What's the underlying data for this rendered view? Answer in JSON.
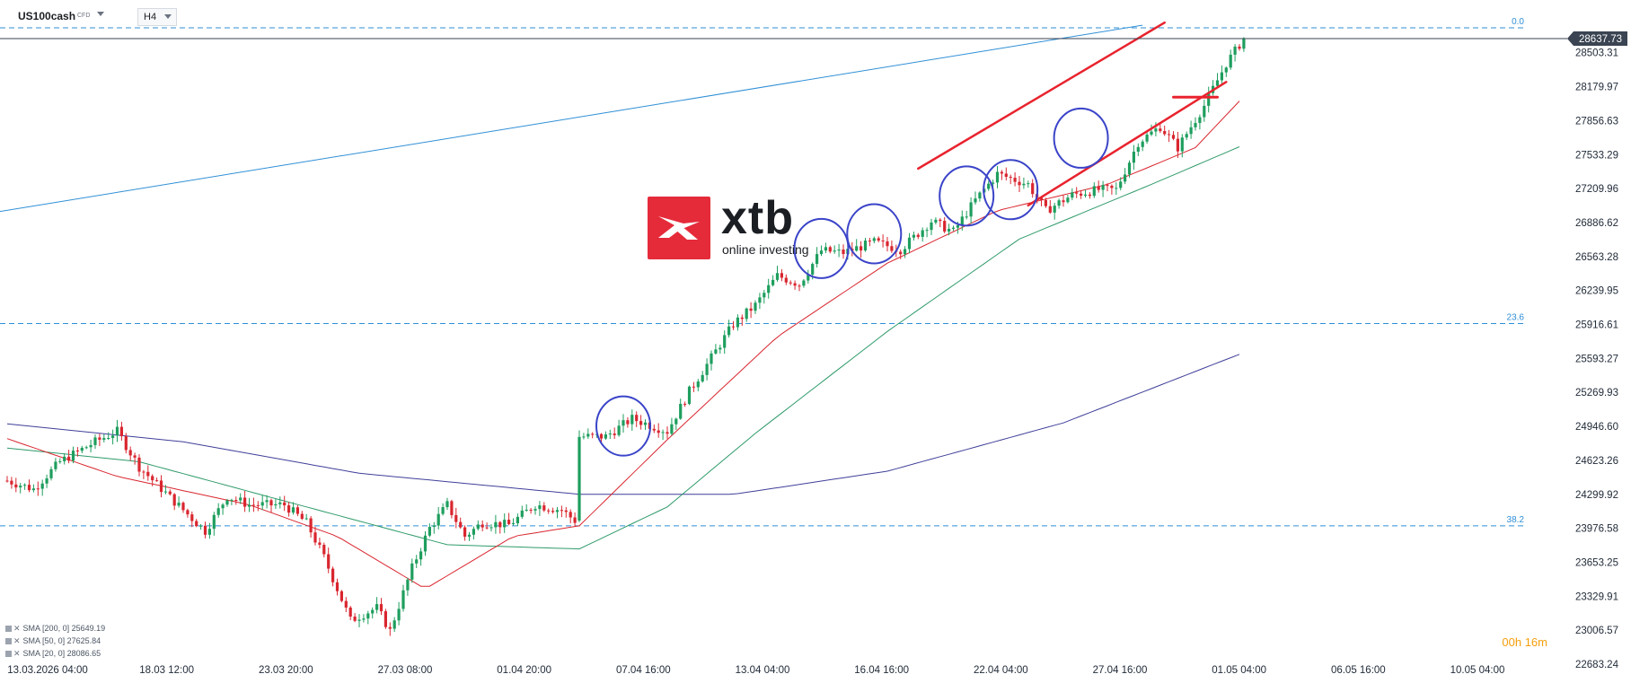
{
  "header": {
    "symbol": "US100cash",
    "instrument_type": "CFD",
    "timeframe": "H4"
  },
  "logo": {
    "brand": "xtb",
    "tagline": "online investing"
  },
  "timer": {
    "hours": "00",
    "hours_unit": "h",
    "minutes": "16",
    "minutes_unit": "m"
  },
  "legend": [
    {
      "label": "SMA [200, 0] 25649.19",
      "color": "#3f3f9a"
    },
    {
      "label": "SMA [50, 0] 27625.84",
      "color": "#2e9a6a"
    },
    {
      "label": "SMA [20, 0] 28086.65",
      "color": "#d9262f"
    }
  ],
  "colors": {
    "bull": "#1e9e5e",
    "bear": "#d9262f",
    "fib": "#2f8fd6",
    "trend": "#2f8fd6",
    "channel": "#e8232e",
    "circle": "#3b44c8",
    "price_tag": "#3a4452"
  },
  "chart_data": {
    "type": "candlestick",
    "title": "US100cash",
    "timeframe": "H4",
    "y_axis": {
      "ticks": [
        28503.31,
        28179.97,
        27856.63,
        27533.29,
        27209.96,
        26886.62,
        26563.28,
        26239.95,
        25916.61,
        25593.27,
        25269.93,
        24946.6,
        24623.26,
        24299.92,
        23976.58,
        23653.25,
        23329.91,
        23006.57,
        22683.24
      ],
      "range": [
        22683.24,
        28820.0
      ]
    },
    "x_axis": {
      "tick_labels": [
        "13.03.2026 04:00",
        "18.03 12:00",
        "23.03 20:00",
        "27.03 08:00",
        "01.04 20:00",
        "07.04 16:00",
        "13.04 04:00",
        "16.04 16:00",
        "22.04 04:00",
        "27.04 16:00",
        "01.05 04:00",
        "06.05 16:00",
        "10.05 04:00"
      ]
    },
    "current_price": "28637.73",
    "fibonacci_levels": [
      {
        "label": "0.0",
        "price": 28740
      },
      {
        "label": "23.6",
        "price": 25925
      },
      {
        "label": "38.2",
        "price": 24000
      }
    ],
    "sma_legend": [
      {
        "name": "SMA [200, 0]",
        "value": 25649.19
      },
      {
        "name": "SMA [50, 0]",
        "value": 27625.84
      },
      {
        "name": "SMA [20, 0]",
        "value": 28086.65
      }
    ],
    "close_path": [
      {
        "bar": 0,
        "price": 24430
      },
      {
        "bar": 6,
        "price": 24350
      },
      {
        "bar": 12,
        "price": 24610
      },
      {
        "bar": 20,
        "price": 24800
      },
      {
        "bar": 25,
        "price": 24900
      },
      {
        "bar": 30,
        "price": 24560
      },
      {
        "bar": 38,
        "price": 24230
      },
      {
        "bar": 45,
        "price": 23950
      },
      {
        "bar": 50,
        "price": 24280
      },
      {
        "bar": 55,
        "price": 24200
      },
      {
        "bar": 63,
        "price": 24200
      },
      {
        "bar": 68,
        "price": 24030
      },
      {
        "bar": 72,
        "price": 23700
      },
      {
        "bar": 78,
        "price": 23100
      },
      {
        "bar": 84,
        "price": 23220
      },
      {
        "bar": 87,
        "price": 23000
      },
      {
        "bar": 92,
        "price": 23600
      },
      {
        "bar": 96,
        "price": 23980
      },
      {
        "bar": 100,
        "price": 24200
      },
      {
        "bar": 104,
        "price": 23900
      },
      {
        "bar": 108,
        "price": 24030
      },
      {
        "bar": 114,
        "price": 24010
      },
      {
        "bar": 120,
        "price": 24200
      },
      {
        "bar": 126,
        "price": 24150
      },
      {
        "bar": 129,
        "price": 24050
      },
      {
        "bar": 130,
        "price": 24850
      },
      {
        "bar": 136,
        "price": 24850
      },
      {
        "bar": 142,
        "price": 25020
      },
      {
        "bar": 150,
        "price": 24900
      },
      {
        "bar": 155,
        "price": 25280
      },
      {
        "bar": 160,
        "price": 25600
      },
      {
        "bar": 165,
        "price": 25920
      },
      {
        "bar": 170,
        "price": 26100
      },
      {
        "bar": 175,
        "price": 26380
      },
      {
        "bar": 180,
        "price": 26300
      },
      {
        "bar": 185,
        "price": 26620
      },
      {
        "bar": 190,
        "price": 26600
      },
      {
        "bar": 197,
        "price": 26700
      },
      {
        "bar": 203,
        "price": 26630
      },
      {
        "bar": 210,
        "price": 26900
      },
      {
        "bar": 215,
        "price": 26800
      },
      {
        "bar": 220,
        "price": 27100
      },
      {
        "bar": 225,
        "price": 27350
      },
      {
        "bar": 232,
        "price": 27250
      },
      {
        "bar": 236,
        "price": 27000
      },
      {
        "bar": 242,
        "price": 27150
      },
      {
        "bar": 248,
        "price": 27200
      },
      {
        "bar": 252,
        "price": 27200
      },
      {
        "bar": 257,
        "price": 27650
      },
      {
        "bar": 262,
        "price": 27800
      },
      {
        "bar": 266,
        "price": 27600
      },
      {
        "bar": 272,
        "price": 28000
      },
      {
        "bar": 277,
        "price": 28400
      },
      {
        "bar": 281,
        "price": 28640
      }
    ],
    "sma200_path": [
      {
        "bar": 0,
        "price": 24970
      },
      {
        "bar": 40,
        "price": 24800
      },
      {
        "bar": 80,
        "price": 24500
      },
      {
        "bar": 130,
        "price": 24300
      },
      {
        "bar": 165,
        "price": 24300
      },
      {
        "bar": 200,
        "price": 24520
      },
      {
        "bar": 240,
        "price": 24980
      },
      {
        "bar": 281,
        "price": 25649
      }
    ],
    "sma50_path": [
      {
        "bar": 0,
        "price": 24740
      },
      {
        "bar": 30,
        "price": 24610
      },
      {
        "bar": 60,
        "price": 24270
      },
      {
        "bar": 100,
        "price": 23820
      },
      {
        "bar": 130,
        "price": 23780
      },
      {
        "bar": 150,
        "price": 24180
      },
      {
        "bar": 170,
        "price": 24880
      },
      {
        "bar": 200,
        "price": 25850
      },
      {
        "bar": 230,
        "price": 26730
      },
      {
        "bar": 260,
        "price": 27250
      },
      {
        "bar": 281,
        "price": 27626
      }
    ],
    "sma20_path": [
      {
        "bar": 0,
        "price": 24830
      },
      {
        "bar": 25,
        "price": 24470
      },
      {
        "bar": 55,
        "price": 24200
      },
      {
        "bar": 75,
        "price": 23900
      },
      {
        "bar": 95,
        "price": 23400
      },
      {
        "bar": 115,
        "price": 23900
      },
      {
        "bar": 130,
        "price": 24000
      },
      {
        "bar": 150,
        "price": 24820
      },
      {
        "bar": 175,
        "price": 25800
      },
      {
        "bar": 200,
        "price": 26500
      },
      {
        "bar": 225,
        "price": 27000
      },
      {
        "bar": 250,
        "price": 27250
      },
      {
        "bar": 270,
        "price": 27600
      },
      {
        "bar": 281,
        "price": 28087
      }
    ],
    "trendline": {
      "from": {
        "bar": -2,
        "price": 26990
      },
      "to": {
        "bar": 258,
        "price": 28765
      }
    },
    "channel": {
      "upper": {
        "from": {
          "bar": 207,
          "price": 27400
        },
        "to": {
          "bar": 263,
          "price": 28790
        }
      },
      "lower": {
        "from": {
          "bar": 232,
          "price": 27050
        },
        "to": {
          "bar": 277,
          "price": 28225
        }
      },
      "marker": {
        "from": {
          "bar": 265,
          "price": 28080
        },
        "to": {
          "bar": 275,
          "price": 28080
        }
      }
    },
    "circles": [
      {
        "bar": 140,
        "price": 24950
      },
      {
        "bar": 185,
        "price": 26640
      },
      {
        "bar": 197,
        "price": 26780
      },
      {
        "bar": 218,
        "price": 27140
      },
      {
        "bar": 228,
        "price": 27200
      },
      {
        "bar": 244,
        "price": 27690
      }
    ],
    "grid": false,
    "legend_position": "bottom-left"
  }
}
